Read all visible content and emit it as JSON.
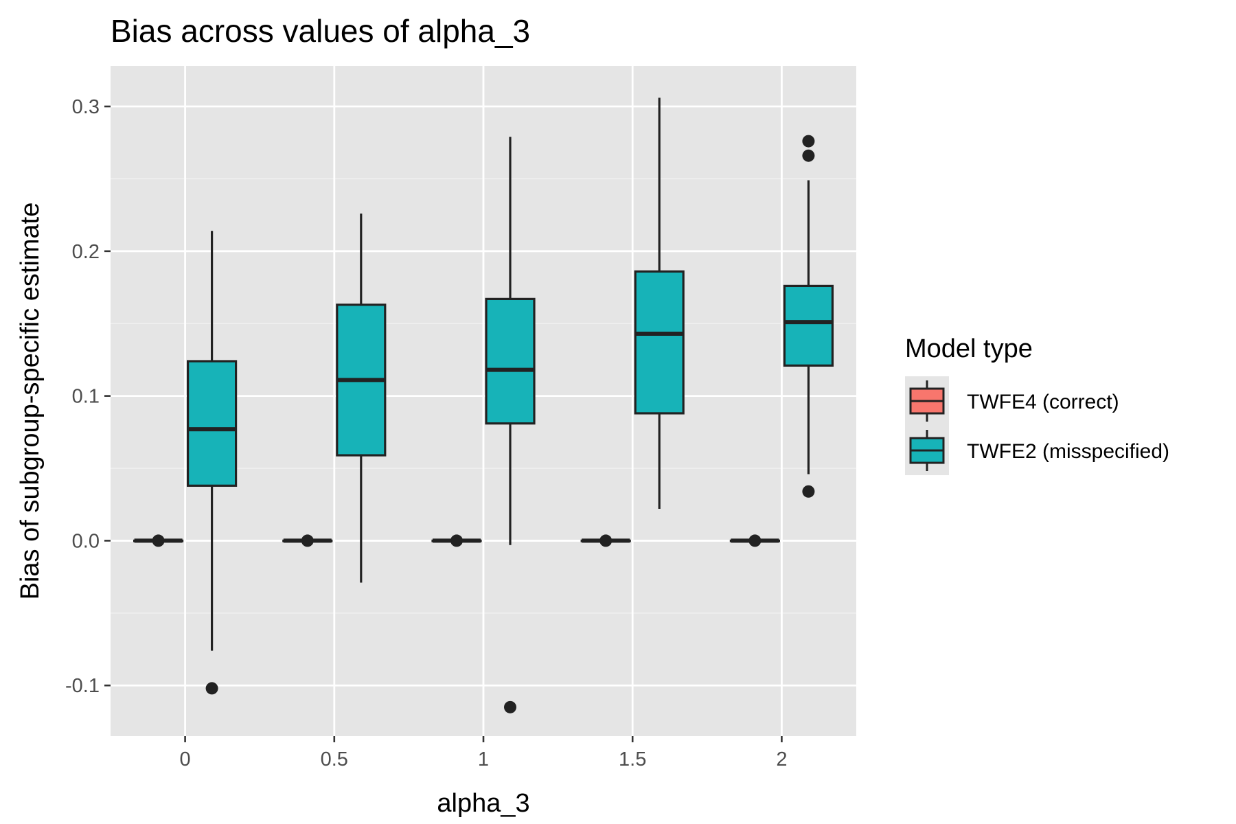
{
  "chart_data": {
    "type": "boxplot",
    "title": "Bias across values of alpha_3",
    "xlabel": "alpha_3",
    "ylabel": "Bias of subgroup-specific estimate",
    "categories": [
      "0",
      "0.5",
      "1",
      "1.5",
      "2"
    ],
    "ylim": [
      -0.135,
      0.328
    ],
    "y_ticks": [
      -0.1,
      0.0,
      0.1,
      0.2,
      0.3
    ],
    "y_tick_labels": [
      "-0.1",
      "0.0",
      "0.1",
      "0.2",
      "0.3"
    ],
    "grid": true,
    "legend": {
      "title": "Model type",
      "position": "right"
    },
    "series": [
      {
        "name": "TWFE4 (correct)",
        "color": "#F8766D",
        "boxes": [
          {
            "q1": 0.0,
            "median": 0.0,
            "q3": 0.0,
            "whisker_low": 0.0,
            "whisker_high": 0.0,
            "outliers": [
              0.0
            ]
          },
          {
            "q1": 0.0,
            "median": 0.0,
            "q3": 0.0,
            "whisker_low": 0.0,
            "whisker_high": 0.0,
            "outliers": [
              0.0
            ]
          },
          {
            "q1": 0.0,
            "median": 0.0,
            "q3": 0.0,
            "whisker_low": 0.0,
            "whisker_high": 0.0,
            "outliers": [
              0.0
            ]
          },
          {
            "q1": 0.0,
            "median": 0.0,
            "q3": 0.0,
            "whisker_low": 0.0,
            "whisker_high": 0.0,
            "outliers": [
              0.0
            ]
          },
          {
            "q1": 0.0,
            "median": 0.0,
            "q3": 0.0,
            "whisker_low": 0.0,
            "whisker_high": 0.0,
            "outliers": [
              0.0
            ]
          }
        ]
      },
      {
        "name": "TWFE2 (misspecified)",
        "color": "#17B3B8",
        "boxes": [
          {
            "q1": 0.038,
            "median": 0.077,
            "q3": 0.124,
            "whisker_low": -0.076,
            "whisker_high": 0.214,
            "outliers": [
              -0.102
            ]
          },
          {
            "q1": 0.059,
            "median": 0.111,
            "q3": 0.163,
            "whisker_low": -0.029,
            "whisker_high": 0.226,
            "outliers": []
          },
          {
            "q1": 0.081,
            "median": 0.118,
            "q3": 0.167,
            "whisker_low": -0.003,
            "whisker_high": 0.279,
            "outliers": [
              -0.115
            ]
          },
          {
            "q1": 0.088,
            "median": 0.143,
            "q3": 0.186,
            "whisker_low": 0.022,
            "whisker_high": 0.306,
            "outliers": []
          },
          {
            "q1": 0.121,
            "median": 0.151,
            "q3": 0.176,
            "whisker_low": 0.046,
            "whisker_high": 0.249,
            "outliers": [
              0.034,
              0.266,
              0.276
            ]
          }
        ]
      }
    ]
  }
}
